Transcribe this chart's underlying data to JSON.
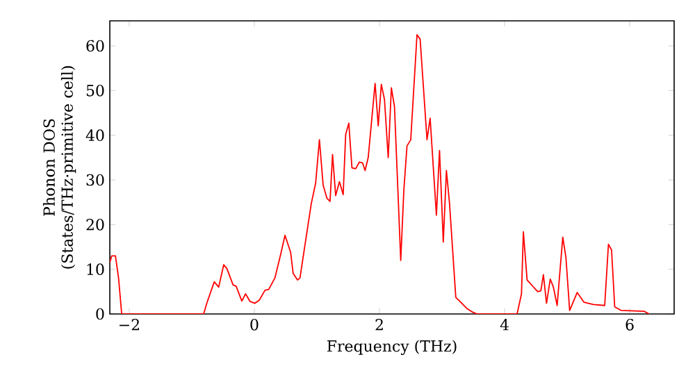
{
  "chart_data": {
    "type": "line",
    "xlabel": "Frequency (THz)",
    "ylabel": "Phonon DOS (States/THz·primitive cell)",
    "xlim": [
      -2.31,
      6.71
    ],
    "ylim": [
      0,
      65.6
    ],
    "xticks": [
      {
        "value": -2,
        "label": "−2"
      },
      0,
      2,
      4,
      6
    ],
    "yticks": [
      0,
      10,
      20,
      30,
      40,
      50,
      60
    ],
    "grid": false,
    "legend": false,
    "marker": "none",
    "line_style": "solid",
    "series": [
      {
        "color": "#ff0000",
        "x": [
          -2.31,
          -2.28,
          -2.22,
          -2.17,
          -2.12,
          -0.81,
          -0.76,
          -0.64,
          -0.57,
          -0.49,
          -0.44,
          -0.34,
          -0.29,
          -0.2,
          -0.14,
          -0.07,
          0.01,
          0.08,
          0.17,
          0.23,
          0.33,
          0.42,
          0.49,
          0.58,
          0.62,
          0.69,
          0.73,
          0.82,
          0.91,
          0.98,
          1.04,
          1.1,
          1.16,
          1.21,
          1.25,
          1.3,
          1.36,
          1.42,
          1.46,
          1.51,
          1.56,
          1.62,
          1.68,
          1.73,
          1.77,
          1.82,
          1.93,
          1.98,
          2.03,
          2.08,
          2.14,
          2.19,
          2.24,
          2.34,
          2.39,
          2.44,
          2.5,
          2.6,
          2.65,
          2.76,
          2.81,
          2.91,
          2.96,
          3.02,
          3.07,
          3.12,
          3.22,
          3.33,
          3.4,
          3.49,
          3.56,
          4.2,
          4.27,
          4.3,
          4.36,
          4.53,
          4.58,
          4.62,
          4.67,
          4.73,
          4.78,
          4.84,
          4.93,
          4.98,
          5.04,
          5.16,
          5.27,
          5.42,
          5.6,
          5.66,
          5.71,
          5.76,
          5.86,
          6.23,
          6.31
        ],
        "values": [
          11.5,
          13,
          13,
          8,
          0,
          0,
          2.4,
          7.2,
          6,
          11,
          10.2,
          6.5,
          6.2,
          2.9,
          4.5,
          2.8,
          2.4,
          3.1,
          5.3,
          5.5,
          8.1,
          13.3,
          17.6,
          13.8,
          9.1,
          7.6,
          8.1,
          16.4,
          24.7,
          29.3,
          39,
          28.8,
          25.9,
          25.2,
          35.7,
          26.5,
          29.6,
          26.7,
          40.2,
          42.7,
          32.7,
          32.5,
          34,
          33.8,
          32.1,
          35,
          51.6,
          42.1,
          51.4,
          48,
          35,
          50.6,
          46.4,
          12,
          27.8,
          37.6,
          39,
          62.5,
          61.5,
          39,
          43.8,
          22.1,
          36.6,
          16.1,
          32.1,
          24.7,
          3.7,
          2.2,
          1.2,
          0.4,
          0,
          0,
          4.5,
          18.4,
          7.6,
          5,
          5.2,
          8.8,
          2.4,
          7.8,
          6,
          1.9,
          17.2,
          12.7,
          0.8,
          4.8,
          2.6,
          2.1,
          1.9,
          15.6,
          14.3,
          1.6,
          0.8,
          0.6,
          0
        ]
      }
    ]
  }
}
